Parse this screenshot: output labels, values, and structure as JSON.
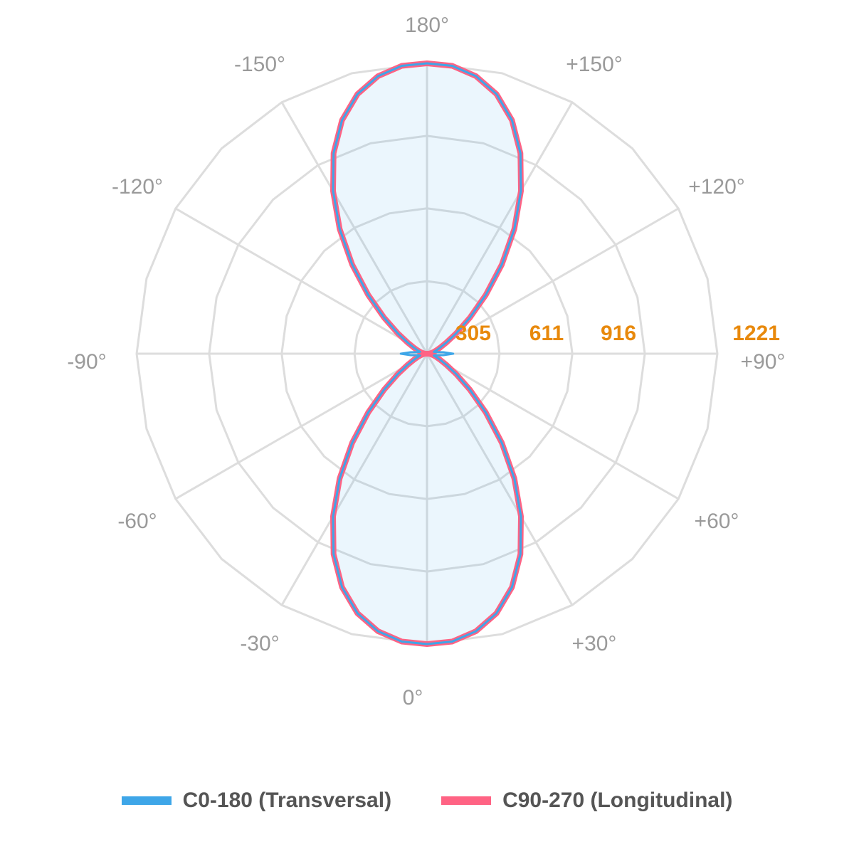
{
  "chart_data": {
    "type": "polar-line",
    "title": "",
    "angle_tick_labels": [
      {
        "angle": 0,
        "label": "0°"
      },
      {
        "angle": 30,
        "label": "+30°"
      },
      {
        "angle": 60,
        "label": "+60°"
      },
      {
        "angle": 90,
        "label": "+90°"
      },
      {
        "angle": 120,
        "label": "+120°"
      },
      {
        "angle": 150,
        "label": "+150°"
      },
      {
        "angle": 180,
        "label": "180°"
      },
      {
        "angle": -150,
        "label": "-150°"
      },
      {
        "angle": -120,
        "label": "-120°"
      },
      {
        "angle": -90,
        "label": "-90°"
      },
      {
        "angle": -60,
        "label": "-60°"
      },
      {
        "angle": -30,
        "label": "-30°"
      }
    ],
    "radial_tick_labels": [
      "305",
      "611",
      "916",
      "1221"
    ],
    "radial_ticks": [
      305,
      611,
      916,
      1221
    ],
    "radial_max": 1221,
    "radial_label_color": "#E8890C",
    "grid": true,
    "legend_position": "bottom",
    "angles": [
      0,
      5,
      10,
      15,
      20,
      25,
      30,
      35,
      40,
      45,
      50,
      55,
      60,
      65,
      70,
      75,
      80,
      85,
      90
    ],
    "series": [
      {
        "name": "C0-180 (Transversal)",
        "color": "#3EA6E8",
        "values": [
          1221,
          1215,
          1185,
          1130,
          1045,
          930,
          790,
          640,
          490,
          350,
          235,
          150,
          95,
          62,
          42,
          30,
          40,
          70,
          110
        ]
      },
      {
        "name": "C90-270 (Longitudinal)",
        "color": "#FF6384",
        "values": [
          1221,
          1215,
          1185,
          1130,
          1045,
          930,
          790,
          640,
          490,
          350,
          235,
          150,
          95,
          62,
          42,
          30,
          20,
          12,
          0
        ]
      }
    ]
  },
  "legend": {
    "items": [
      {
        "label": "C0-180 (Transversal)",
        "color": "#3EA6E8"
      },
      {
        "label": "C90-270 (Longitudinal)",
        "color": "#FF6384"
      }
    ]
  }
}
